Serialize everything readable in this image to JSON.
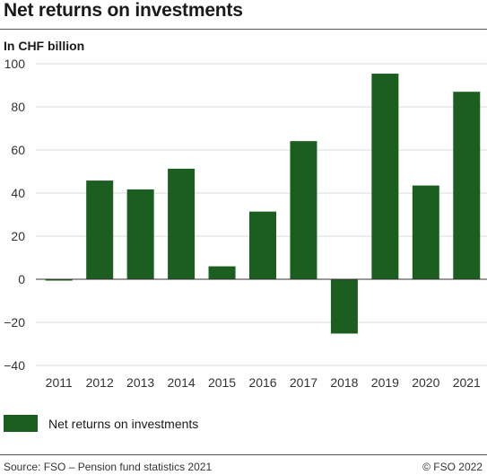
{
  "header": {
    "title": "Net returns on investments",
    "unit": "In CHF billion"
  },
  "chart_data": {
    "type": "bar",
    "categories": [
      "2011",
      "2012",
      "2013",
      "2014",
      "2015",
      "2016",
      "2017",
      "2018",
      "2019",
      "2020",
      "2021"
    ],
    "series": [
      {
        "name": "Net returns on investments",
        "values": [
          -0.5,
          45.8,
          41.7,
          51.3,
          6,
          31.4,
          64.1,
          -25.2,
          95.4,
          43.5,
          87
        ]
      }
    ],
    "title": "Net returns on investments",
    "ylabel": "In CHF billion",
    "ylim": [
      -40,
      100
    ],
    "yticks": [
      -40,
      -20,
      0,
      20,
      40,
      60,
      80,
      100
    ],
    "grid": true,
    "legend": "bottom-left",
    "colors": {
      "bar": "#1b5e1f",
      "grid": "#d9d9d9",
      "zero_line": "#333333"
    }
  },
  "legend": {
    "label": "Net returns on investments"
  },
  "footer": {
    "source": "Source: FSO – Pension fund statistics 2021",
    "credit": "© FSO 2022"
  }
}
